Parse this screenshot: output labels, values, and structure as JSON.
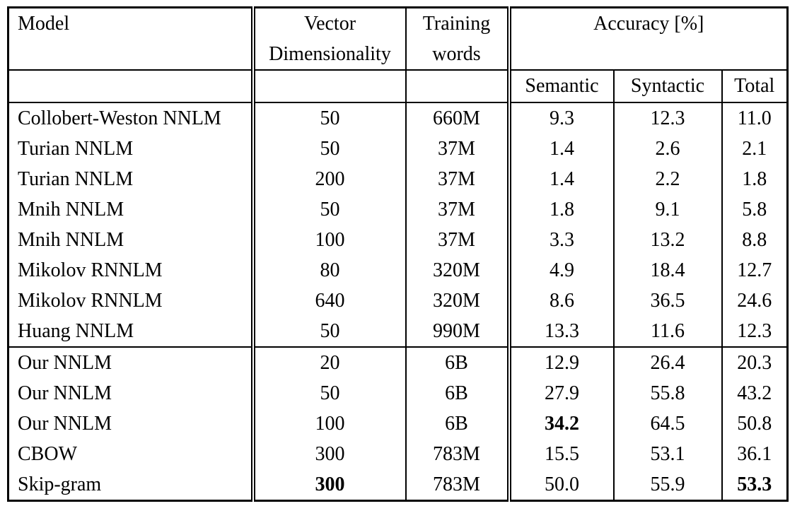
{
  "table": {
    "headers": {
      "model": "Model",
      "vector": [
        "Vector",
        "Dimensionality"
      ],
      "training": [
        "Training",
        "words"
      ],
      "accuracy_group": "Accuracy [%]",
      "semantic": "Semantic",
      "syntactic": "Syntactic",
      "total": "Total"
    },
    "groups": [
      {
        "rows": [
          {
            "cells": [
              "Collobert-Weston NNLM",
              "50",
              "660M",
              "9.3",
              "12.3",
              "11.0"
            ],
            "bold": [
              false,
              false,
              false,
              false,
              false,
              false
            ]
          },
          {
            "cells": [
              "Turian NNLM",
              "50",
              "37M",
              "1.4",
              "2.6",
              "2.1"
            ],
            "bold": [
              false,
              false,
              false,
              false,
              false,
              false
            ]
          },
          {
            "cells": [
              "Turian NNLM",
              "200",
              "37M",
              "1.4",
              "2.2",
              "1.8"
            ],
            "bold": [
              false,
              false,
              false,
              false,
              false,
              false
            ]
          },
          {
            "cells": [
              "Mnih NNLM",
              "50",
              "37M",
              "1.8",
              "9.1",
              "5.8"
            ],
            "bold": [
              false,
              false,
              false,
              false,
              false,
              false
            ]
          },
          {
            "cells": [
              "Mnih NNLM",
              "100",
              "37M",
              "3.3",
              "13.2",
              "8.8"
            ],
            "bold": [
              false,
              false,
              false,
              false,
              false,
              false
            ]
          },
          {
            "cells": [
              "Mikolov RNNLM",
              "80",
              "320M",
              "4.9",
              "18.4",
              "12.7"
            ],
            "bold": [
              false,
              false,
              false,
              false,
              false,
              false
            ]
          },
          {
            "cells": [
              "Mikolov RNNLM",
              "640",
              "320M",
              "8.6",
              "36.5",
              "24.6"
            ],
            "bold": [
              false,
              false,
              false,
              false,
              false,
              false
            ]
          },
          {
            "cells": [
              "Huang NNLM",
              "50",
              "990M",
              "13.3",
              "11.6",
              "12.3"
            ],
            "bold": [
              false,
              false,
              false,
              false,
              false,
              false
            ]
          }
        ]
      },
      {
        "rows": [
          {
            "cells": [
              "Our NNLM",
              "20",
              "6B",
              "12.9",
              "26.4",
              "20.3"
            ],
            "bold": [
              false,
              false,
              false,
              false,
              false,
              false
            ]
          },
          {
            "cells": [
              "Our NNLM",
              "50",
              "6B",
              "27.9",
              "55.8",
              "43.2"
            ],
            "bold": [
              false,
              false,
              false,
              false,
              false,
              false
            ]
          },
          {
            "cells": [
              "Our NNLM",
              "100",
              "6B",
              "34.2",
              "64.5",
              "50.8"
            ],
            "bold": [
              false,
              false,
              false,
              true,
              false,
              false
            ]
          },
          {
            "cells": [
              "CBOW",
              "300",
              "783M",
              "15.5",
              "53.1",
              "36.1"
            ],
            "bold": [
              false,
              false,
              false,
              false,
              false,
              false
            ]
          },
          {
            "cells": [
              "Skip-gram",
              "300",
              "783M",
              "50.0",
              "55.9",
              "53.3"
            ],
            "bold": [
              false,
              true,
              false,
              false,
              false,
              true
            ]
          }
        ]
      }
    ]
  }
}
